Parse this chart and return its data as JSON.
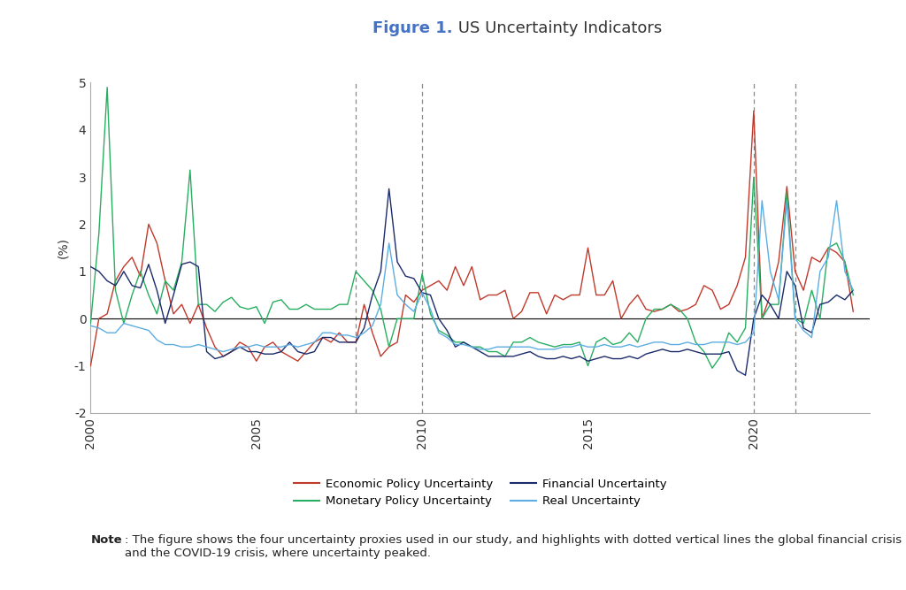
{
  "title_bold": "Figure 1.",
  "title_normal": " US Uncertainty Indicators",
  "title_color_bold": "#4472C4",
  "title_color_normal": "#333333",
  "ylabel": "(%)",
  "ylim": [
    -2,
    5
  ],
  "yticks": [
    -2,
    -1,
    0,
    1,
    2,
    3,
    4,
    5
  ],
  "xlim": [
    2000,
    2023.5
  ],
  "xticks": [
    2000,
    2005,
    2010,
    2015,
    2020
  ],
  "vlines": [
    2008.0,
    2010.0,
    2020.0,
    2021.25
  ],
  "note_bold": "Note",
  "note_rest": ": The figure shows the four uncertainty proxies used in our study, and highlights with dotted vertical lines the global financial crisis and the COVID-19 crisis, where uncertainty peaked.",
  "legend_entries": [
    {
      "label": "Economic Policy Uncertainty",
      "color": "#C0392B"
    },
    {
      "label": "Monetary Policy Uncertainty",
      "color": "#27AE60"
    },
    {
      "label": "Financial Uncertainty",
      "color": "#1B2A6B"
    },
    {
      "label": "Real Uncertainty",
      "color": "#5DADE2"
    }
  ],
  "epu": {
    "x": [
      2000.0,
      2000.25,
      2000.5,
      2000.75,
      2001.0,
      2001.25,
      2001.5,
      2001.75,
      2002.0,
      2002.25,
      2002.5,
      2002.75,
      2003.0,
      2003.25,
      2003.5,
      2003.75,
      2004.0,
      2004.25,
      2004.5,
      2004.75,
      2005.0,
      2005.25,
      2005.5,
      2005.75,
      2006.0,
      2006.25,
      2006.5,
      2006.75,
      2007.0,
      2007.25,
      2007.5,
      2007.75,
      2008.0,
      2008.25,
      2008.5,
      2008.75,
      2009.0,
      2009.25,
      2009.5,
      2009.75,
      2010.0,
      2010.25,
      2010.5,
      2010.75,
      2011.0,
      2011.25,
      2011.5,
      2011.75,
      2012.0,
      2012.25,
      2012.5,
      2012.75,
      2013.0,
      2013.25,
      2013.5,
      2013.75,
      2014.0,
      2014.25,
      2014.5,
      2014.75,
      2015.0,
      2015.25,
      2015.5,
      2015.75,
      2016.0,
      2016.25,
      2016.5,
      2016.75,
      2017.0,
      2017.25,
      2017.5,
      2017.75,
      2018.0,
      2018.25,
      2018.5,
      2018.75,
      2019.0,
      2019.25,
      2019.5,
      2019.75,
      2020.0,
      2020.25,
      2020.5,
      2020.75,
      2021.0,
      2021.25,
      2021.5,
      2021.75,
      2022.0,
      2022.25,
      2022.5,
      2022.75,
      2023.0
    ],
    "y": [
      -1.0,
      0.0,
      0.1,
      0.8,
      1.1,
      1.3,
      0.9,
      2.0,
      1.6,
      0.8,
      0.1,
      0.3,
      -0.1,
      0.3,
      -0.2,
      -0.6,
      -0.8,
      -0.7,
      -0.5,
      -0.6,
      -0.9,
      -0.6,
      -0.5,
      -0.7,
      -0.8,
      -0.9,
      -0.7,
      -0.5,
      -0.4,
      -0.5,
      -0.3,
      -0.5,
      -0.5,
      0.3,
      -0.3,
      -0.8,
      -0.6,
      -0.5,
      0.5,
      0.35,
      0.6,
      0.7,
      0.8,
      0.6,
      1.1,
      0.7,
      1.1,
      0.4,
      0.5,
      0.5,
      0.6,
      0.0,
      0.15,
      0.55,
      0.55,
      0.1,
      0.5,
      0.4,
      0.5,
      0.5,
      1.5,
      0.5,
      0.5,
      0.8,
      0.0,
      0.3,
      0.5,
      0.2,
      0.15,
      0.2,
      0.3,
      0.15,
      0.2,
      0.3,
      0.7,
      0.6,
      0.2,
      0.3,
      0.7,
      1.3,
      4.4,
      0.0,
      0.5,
      1.2,
      2.8,
      1.0,
      0.6,
      1.3,
      1.2,
      1.5,
      1.4,
      1.2,
      0.15
    ]
  },
  "mpu": {
    "x": [
      2000.0,
      2000.25,
      2000.5,
      2000.75,
      2001.0,
      2001.25,
      2001.5,
      2001.75,
      2002.0,
      2002.25,
      2002.5,
      2002.75,
      2003.0,
      2003.25,
      2003.5,
      2003.75,
      2004.0,
      2004.25,
      2004.5,
      2004.75,
      2005.0,
      2005.25,
      2005.5,
      2005.75,
      2006.0,
      2006.25,
      2006.5,
      2006.75,
      2007.0,
      2007.25,
      2007.5,
      2007.75,
      2008.0,
      2008.25,
      2008.5,
      2008.75,
      2009.0,
      2009.25,
      2009.5,
      2009.75,
      2010.0,
      2010.25,
      2010.5,
      2010.75,
      2011.0,
      2011.25,
      2011.5,
      2011.75,
      2012.0,
      2012.25,
      2012.5,
      2012.75,
      2013.0,
      2013.25,
      2013.5,
      2013.75,
      2014.0,
      2014.25,
      2014.5,
      2014.75,
      2015.0,
      2015.25,
      2015.5,
      2015.75,
      2016.0,
      2016.25,
      2016.5,
      2016.75,
      2017.0,
      2017.25,
      2017.5,
      2017.75,
      2018.0,
      2018.25,
      2018.5,
      2018.75,
      2019.0,
      2019.25,
      2019.5,
      2019.75,
      2020.0,
      2020.25,
      2020.5,
      2020.75,
      2021.0,
      2021.25,
      2021.5,
      2021.75,
      2022.0,
      2022.25,
      2022.5,
      2022.75,
      2023.0
    ],
    "y": [
      -0.1,
      1.8,
      4.9,
      0.6,
      -0.1,
      0.5,
      1.0,
      0.5,
      0.1,
      0.8,
      0.6,
      1.2,
      3.15,
      0.3,
      0.3,
      0.15,
      0.35,
      0.45,
      0.25,
      0.2,
      0.25,
      -0.1,
      0.35,
      0.4,
      0.2,
      0.2,
      0.3,
      0.2,
      0.2,
      0.2,
      0.3,
      0.3,
      1.0,
      0.8,
      0.6,
      0.2,
      -0.6,
      0.0,
      0.0,
      0.0,
      0.95,
      0.1,
      -0.25,
      -0.35,
      -0.5,
      -0.5,
      -0.6,
      -0.6,
      -0.7,
      -0.7,
      -0.8,
      -0.5,
      -0.5,
      -0.4,
      -0.5,
      -0.55,
      -0.6,
      -0.55,
      -0.55,
      -0.5,
      -1.0,
      -0.5,
      -0.4,
      -0.55,
      -0.5,
      -0.3,
      -0.5,
      0.0,
      0.2,
      0.2,
      0.3,
      0.2,
      0.0,
      -0.5,
      -0.7,
      -1.05,
      -0.8,
      -0.3,
      -0.5,
      -0.2,
      3.0,
      0.0,
      0.3,
      0.3,
      2.7,
      0.0,
      -0.1,
      0.6,
      0.0,
      1.5,
      1.6,
      1.2,
      0.5
    ]
  },
  "fu": {
    "x": [
      2000.0,
      2000.25,
      2000.5,
      2000.75,
      2001.0,
      2001.25,
      2001.5,
      2001.75,
      2002.0,
      2002.25,
      2002.5,
      2002.75,
      2003.0,
      2003.25,
      2003.5,
      2003.75,
      2004.0,
      2004.25,
      2004.5,
      2004.75,
      2005.0,
      2005.25,
      2005.5,
      2005.75,
      2006.0,
      2006.25,
      2006.5,
      2006.75,
      2007.0,
      2007.25,
      2007.5,
      2007.75,
      2008.0,
      2008.25,
      2008.5,
      2008.75,
      2009.0,
      2009.25,
      2009.5,
      2009.75,
      2010.0,
      2010.25,
      2010.5,
      2010.75,
      2011.0,
      2011.25,
      2011.5,
      2011.75,
      2012.0,
      2012.25,
      2012.5,
      2012.75,
      2013.0,
      2013.25,
      2013.5,
      2013.75,
      2014.0,
      2014.25,
      2014.5,
      2014.75,
      2015.0,
      2015.25,
      2015.5,
      2015.75,
      2016.0,
      2016.25,
      2016.5,
      2016.75,
      2017.0,
      2017.25,
      2017.5,
      2017.75,
      2018.0,
      2018.25,
      2018.5,
      2018.75,
      2019.0,
      2019.25,
      2019.5,
      2019.75,
      2020.0,
      2020.25,
      2020.5,
      2020.75,
      2021.0,
      2021.25,
      2021.5,
      2021.75,
      2022.0,
      2022.25,
      2022.5,
      2022.75,
      2023.0
    ],
    "y": [
      1.1,
      1.0,
      0.8,
      0.7,
      1.0,
      0.7,
      0.65,
      1.15,
      0.6,
      -0.1,
      0.5,
      1.15,
      1.2,
      1.1,
      -0.7,
      -0.85,
      -0.8,
      -0.7,
      -0.6,
      -0.7,
      -0.7,
      -0.75,
      -0.75,
      -0.7,
      -0.5,
      -0.7,
      -0.75,
      -0.7,
      -0.4,
      -0.4,
      -0.5,
      -0.5,
      -0.5,
      -0.2,
      0.5,
      1.0,
      2.75,
      1.2,
      0.9,
      0.85,
      0.55,
      0.5,
      0.0,
      -0.25,
      -0.6,
      -0.5,
      -0.6,
      -0.7,
      -0.8,
      -0.8,
      -0.8,
      -0.8,
      -0.75,
      -0.7,
      -0.8,
      -0.85,
      -0.85,
      -0.8,
      -0.85,
      -0.8,
      -0.9,
      -0.85,
      -0.8,
      -0.85,
      -0.85,
      -0.8,
      -0.85,
      -0.75,
      -0.7,
      -0.65,
      -0.7,
      -0.7,
      -0.65,
      -0.7,
      -0.75,
      -0.75,
      -0.75,
      -0.7,
      -1.1,
      -1.2,
      0.0,
      0.5,
      0.3,
      0.0,
      1.0,
      0.7,
      -0.2,
      -0.3,
      0.3,
      0.35,
      0.5,
      0.4,
      0.6
    ]
  },
  "ru": {
    "x": [
      2000.0,
      2000.25,
      2000.5,
      2000.75,
      2001.0,
      2001.25,
      2001.5,
      2001.75,
      2002.0,
      2002.25,
      2002.5,
      2002.75,
      2003.0,
      2003.25,
      2003.5,
      2003.75,
      2004.0,
      2004.25,
      2004.5,
      2004.75,
      2005.0,
      2005.25,
      2005.5,
      2005.75,
      2006.0,
      2006.25,
      2006.5,
      2006.75,
      2007.0,
      2007.25,
      2007.5,
      2007.75,
      2008.0,
      2008.25,
      2008.5,
      2008.75,
      2009.0,
      2009.25,
      2009.5,
      2009.75,
      2010.0,
      2010.25,
      2010.5,
      2010.75,
      2011.0,
      2011.25,
      2011.5,
      2011.75,
      2012.0,
      2012.25,
      2012.5,
      2012.75,
      2013.0,
      2013.25,
      2013.5,
      2013.75,
      2014.0,
      2014.25,
      2014.5,
      2014.75,
      2015.0,
      2015.25,
      2015.5,
      2015.75,
      2016.0,
      2016.25,
      2016.5,
      2016.75,
      2017.0,
      2017.25,
      2017.5,
      2017.75,
      2018.0,
      2018.25,
      2018.5,
      2018.75,
      2019.0,
      2019.25,
      2019.5,
      2019.75,
      2020.0,
      2020.25,
      2020.5,
      2020.75,
      2021.0,
      2021.25,
      2021.5,
      2021.75,
      2022.0,
      2022.25,
      2022.5,
      2022.75,
      2023.0
    ],
    "y": [
      -0.15,
      -0.2,
      -0.3,
      -0.3,
      -0.1,
      -0.15,
      -0.2,
      -0.25,
      -0.45,
      -0.55,
      -0.55,
      -0.6,
      -0.6,
      -0.55,
      -0.6,
      -0.65,
      -0.7,
      -0.65,
      -0.6,
      -0.6,
      -0.55,
      -0.6,
      -0.6,
      -0.6,
      -0.55,
      -0.6,
      -0.55,
      -0.5,
      -0.3,
      -0.3,
      -0.35,
      -0.35,
      -0.4,
      -0.3,
      -0.15,
      0.3,
      1.6,
      0.5,
      0.3,
      0.15,
      0.55,
      0.2,
      -0.3,
      -0.4,
      -0.55,
      -0.55,
      -0.6,
      -0.65,
      -0.65,
      -0.6,
      -0.6,
      -0.6,
      -0.6,
      -0.6,
      -0.65,
      -0.65,
      -0.65,
      -0.6,
      -0.6,
      -0.55,
      -0.6,
      -0.6,
      -0.55,
      -0.6,
      -0.6,
      -0.55,
      -0.6,
      -0.55,
      -0.5,
      -0.5,
      -0.55,
      -0.55,
      -0.5,
      -0.55,
      -0.55,
      -0.5,
      -0.5,
      -0.5,
      -0.55,
      -0.5,
      -0.3,
      2.5,
      1.0,
      0.4,
      2.5,
      0.0,
      -0.25,
      -0.4,
      1.0,
      1.3,
      2.5,
      1.0,
      0.6
    ]
  }
}
